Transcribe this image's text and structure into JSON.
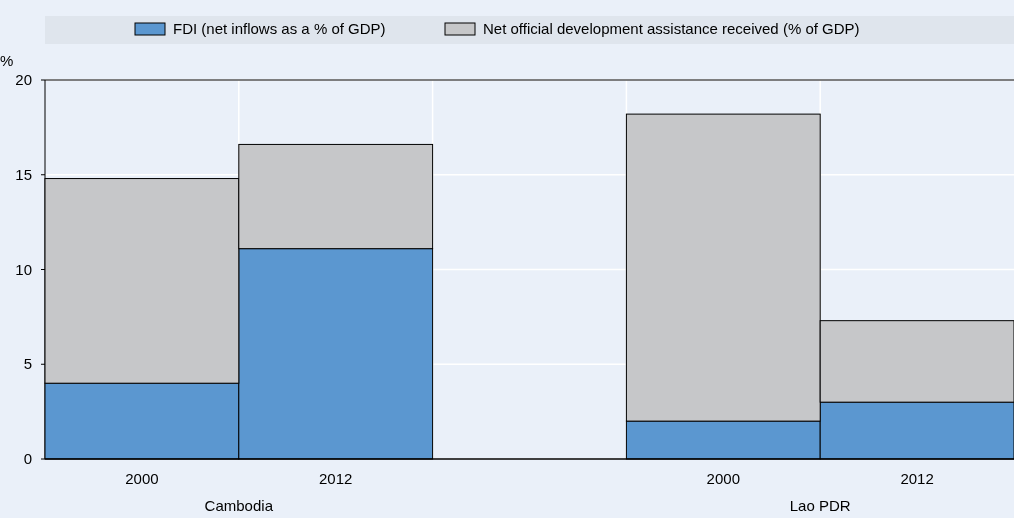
{
  "chart_data": {
    "type": "bar",
    "stacked": true,
    "ylabel": "%",
    "categories": [
      "2000",
      "2012",
      null,
      "2000",
      "2012"
    ],
    "series": [
      {
        "name": "FDI (net inflows as a % of GDP)",
        "color": "#5b97d0",
        "values": [
          4.0,
          11.1,
          null,
          2.0,
          3.0
        ]
      },
      {
        "name": "Net official development assistance received (% of GDP)",
        "color": "#c6c7c9",
        "values": [
          10.8,
          5.5,
          null,
          16.2,
          4.3
        ]
      }
    ],
    "ylim": [
      0,
      20
    ],
    "yticks": [
      0,
      5,
      10,
      15,
      20
    ],
    "grid": true,
    "legend": "top",
    "annotations": [
      "Cambodia",
      "Lao PDR"
    ]
  }
}
